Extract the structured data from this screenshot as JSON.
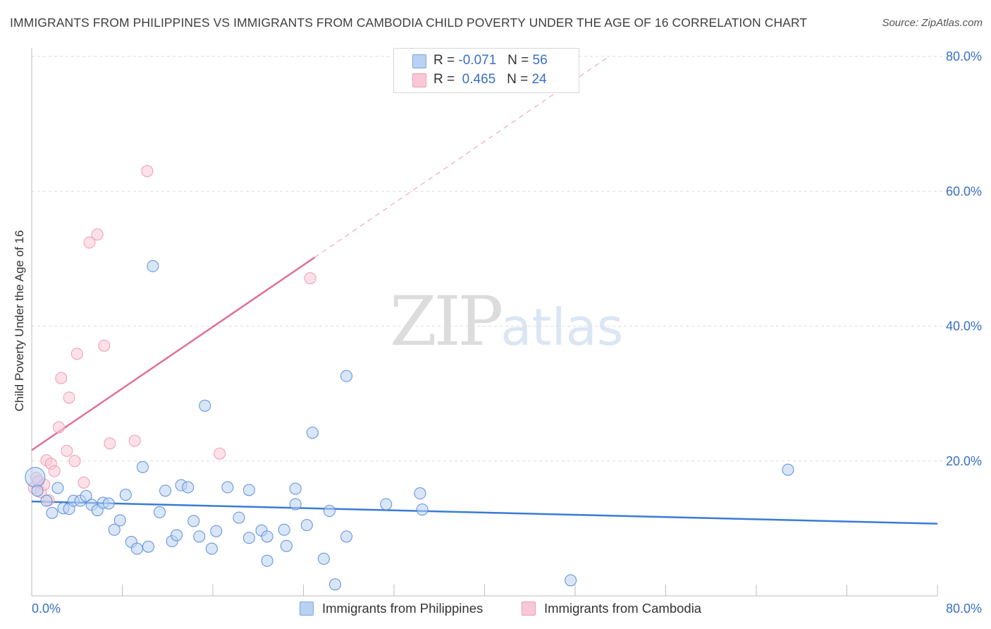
{
  "header": {
    "title": "IMMIGRANTS FROM PHILIPPINES VS IMMIGRANTS FROM CAMBODIA CHILD POVERTY UNDER THE AGE OF 16 CORRELATION CHART",
    "source": "Source: ZipAtlas.com"
  },
  "watermark": {
    "part1": "ZIP",
    "part2": "atlas"
  },
  "legend": {
    "r_label": "R =",
    "n_label": "N =",
    "rows": [
      {
        "r": "-0.071",
        "n": "56",
        "color": "#a9c8f0"
      },
      {
        "r": "0.465",
        "n": "24",
        "color": "#f7b9cc"
      }
    ]
  },
  "chart_data": {
    "type": "scatter",
    "title": "IMMIGRANTS FROM PHILIPPINES VS IMMIGRANTS FROM CAMBODIA CHILD POVERTY UNDER THE AGE OF 16 CORRELATION CHART",
    "ylabel": "Child Poverty Under the Age of 16",
    "xlabel": "",
    "xlim": [
      0,
      80
    ],
    "ylim": [
      0,
      80
    ],
    "x_tick_labels": [
      "0.0%",
      "80.0%"
    ],
    "y_tick_labels": [
      "20.0%",
      "40.0%",
      "60.0%",
      "80.0%"
    ],
    "y_ticks": [
      20,
      40,
      60,
      80
    ],
    "grid": true,
    "legend_position": "top-center",
    "series": [
      {
        "name": "Immigrants from Philippines",
        "color": "#5b8fd8",
        "fill": "#b9d1f2",
        "R": -0.071,
        "N": 56,
        "trend": {
          "x": [
            0,
            80
          ],
          "y": [
            14.0,
            10.7
          ],
          "color": "#3a7bd5"
        },
        "points": [
          [
            0.3,
            17.6
          ],
          [
            0.5,
            15.6
          ],
          [
            1.3,
            14.1
          ],
          [
            1.8,
            12.3
          ],
          [
            2.3,
            16.0
          ],
          [
            2.8,
            13.0
          ],
          [
            3.3,
            12.9
          ],
          [
            3.7,
            14.1
          ],
          [
            4.3,
            14.1
          ],
          [
            4.8,
            14.8
          ],
          [
            5.3,
            13.5
          ],
          [
            5.8,
            12.7
          ],
          [
            6.3,
            13.8
          ],
          [
            6.8,
            13.7
          ],
          [
            7.3,
            9.8
          ],
          [
            7.8,
            11.2
          ],
          [
            8.3,
            15.0
          ],
          [
            8.8,
            8.0
          ],
          [
            9.3,
            7.0
          ],
          [
            9.8,
            19.1
          ],
          [
            10.3,
            7.3
          ],
          [
            10.7,
            48.9
          ],
          [
            11.3,
            12.4
          ],
          [
            11.8,
            15.6
          ],
          [
            12.4,
            8.1
          ],
          [
            12.8,
            9.0
          ],
          [
            13.2,
            16.4
          ],
          [
            13.8,
            16.1
          ],
          [
            14.3,
            11.1
          ],
          [
            14.8,
            8.8
          ],
          [
            15.3,
            28.2
          ],
          [
            15.9,
            7.0
          ],
          [
            16.3,
            9.6
          ],
          [
            17.3,
            16.1
          ],
          [
            18.3,
            11.6
          ],
          [
            19.2,
            8.6
          ],
          [
            19.2,
            15.7
          ],
          [
            20.3,
            9.7
          ],
          [
            20.8,
            8.8
          ],
          [
            20.8,
            5.2
          ],
          [
            22.3,
            9.8
          ],
          [
            22.5,
            7.4
          ],
          [
            23.3,
            13.6
          ],
          [
            23.3,
            15.9
          ],
          [
            24.3,
            10.5
          ],
          [
            24.8,
            24.2
          ],
          [
            25.8,
            5.5
          ],
          [
            26.3,
            12.6
          ],
          [
            26.8,
            1.7
          ],
          [
            27.8,
            8.8
          ],
          [
            27.8,
            32.6
          ],
          [
            31.3,
            13.6
          ],
          [
            34.3,
            15.2
          ],
          [
            34.5,
            12.8
          ],
          [
            47.6,
            2.3
          ],
          [
            66.8,
            18.7
          ]
        ]
      },
      {
        "name": "Immigrants from Cambodia",
        "color": "#ee9bb4",
        "fill": "#f9c8d6",
        "R": 0.465,
        "N": 24,
        "trend_solid": {
          "x": [
            0,
            25
          ],
          "y": [
            21.6,
            50.2
          ],
          "color": "#e0709a"
        },
        "trend_dashed": {
          "x": [
            25,
            51
          ],
          "y": [
            50.2,
            80.0
          ]
        },
        "points": [
          [
            0.2,
            16.0
          ],
          [
            0.4,
            17.5
          ],
          [
            0.6,
            17.0
          ],
          [
            0.8,
            15.4
          ],
          [
            1.1,
            16.5
          ],
          [
            1.3,
            20.1
          ],
          [
            1.5,
            14.2
          ],
          [
            1.7,
            19.6
          ],
          [
            2.0,
            18.5
          ],
          [
            2.4,
            25.0
          ],
          [
            2.6,
            32.3
          ],
          [
            3.1,
            21.5
          ],
          [
            3.3,
            29.4
          ],
          [
            3.8,
            20.0
          ],
          [
            4.0,
            35.9
          ],
          [
            4.6,
            16.8
          ],
          [
            5.1,
            52.4
          ],
          [
            5.8,
            53.6
          ],
          [
            6.4,
            37.1
          ],
          [
            6.9,
            22.6
          ],
          [
            9.1,
            23.0
          ],
          [
            10.2,
            63.0
          ],
          [
            16.6,
            21.1
          ],
          [
            24.6,
            47.1
          ]
        ]
      }
    ]
  }
}
